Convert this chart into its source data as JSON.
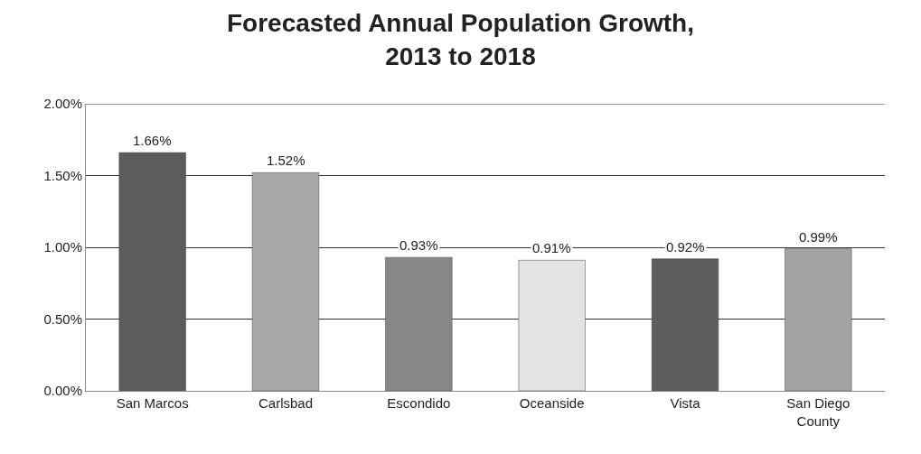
{
  "chart_data": {
    "type": "bar",
    "title": "Forecasted Annual Population Growth,\n2013 to 2018",
    "categories": [
      "San Marcos",
      "Carlsbad",
      "Escondido",
      "Oceanside",
      "Vista",
      "San Diego County"
    ],
    "values": [
      1.66,
      1.52,
      0.93,
      0.91,
      0.92,
      0.99
    ],
    "value_labels": [
      "1.66%",
      "1.52%",
      "0.93%",
      "0.91%",
      "0.92%",
      "0.99%"
    ],
    "colors": [
      "#5c5c5c",
      "#a9a9a9",
      "#878787",
      "#e4e4e4",
      "#5e5e5e",
      "#a3a3a3"
    ],
    "ylim": [
      0,
      2
    ],
    "yticks": [
      {
        "value": 0,
        "label": "0.00%"
      },
      {
        "value": 0.5,
        "label": "0.50%"
      },
      {
        "value": 1,
        "label": "1.00%"
      },
      {
        "value": 1.5,
        "label": "1.50%"
      },
      {
        "value": 2,
        "label": "2.00%"
      }
    ],
    "grid": "y"
  }
}
